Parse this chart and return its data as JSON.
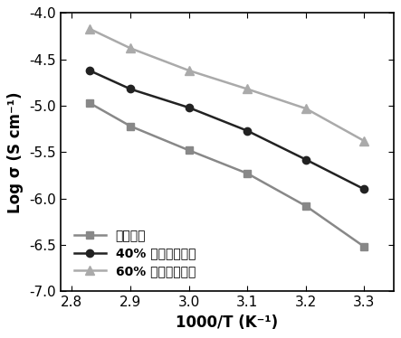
{
  "series": [
    {
      "label": "共聚主链",
      "x": [
        2.83,
        2.9,
        3.0,
        3.1,
        3.2,
        3.3
      ],
      "y": [
        -4.97,
        -5.22,
        -5.48,
        -5.73,
        -6.08,
        -6.52
      ],
      "color": "#888888",
      "marker": "s",
      "markersize": 6,
      "linewidth": 1.8
    },
    {
      "label": "40% 硼酸侧链键接",
      "x": [
        2.83,
        2.9,
        3.0,
        3.1,
        3.2,
        3.3
      ],
      "y": [
        -4.62,
        -4.82,
        -5.02,
        -5.27,
        -5.58,
        -5.9
      ],
      "color": "#222222",
      "marker": "o",
      "markersize": 6,
      "linewidth": 1.8
    },
    {
      "label": "60% 硼酸侧链键接",
      "x": [
        2.83,
        2.9,
        3.0,
        3.1,
        3.2,
        3.3
      ],
      "y": [
        -4.17,
        -4.38,
        -4.62,
        -4.82,
        -5.03,
        -5.38
      ],
      "color": "#aaaaaa",
      "marker": "^",
      "markersize": 7,
      "linewidth": 1.8
    }
  ],
  "xlabel": "1000/T (K⁻¹)",
  "ylabel": "Log σ (S cm⁻¹)",
  "xlim": [
    2.78,
    3.35
  ],
  "ylim": [
    -7.0,
    -4.0
  ],
  "xticks": [
    2.8,
    2.9,
    3.0,
    3.1,
    3.2,
    3.3
  ],
  "yticks": [
    -7.0,
    -6.5,
    -6.0,
    -5.5,
    -5.0,
    -4.5,
    -4.0
  ],
  "xlabel_fontsize": 12,
  "ylabel_fontsize": 12,
  "tick_fontsize": 11,
  "legend_fontsize": 10,
  "background_color": "#ffffff"
}
